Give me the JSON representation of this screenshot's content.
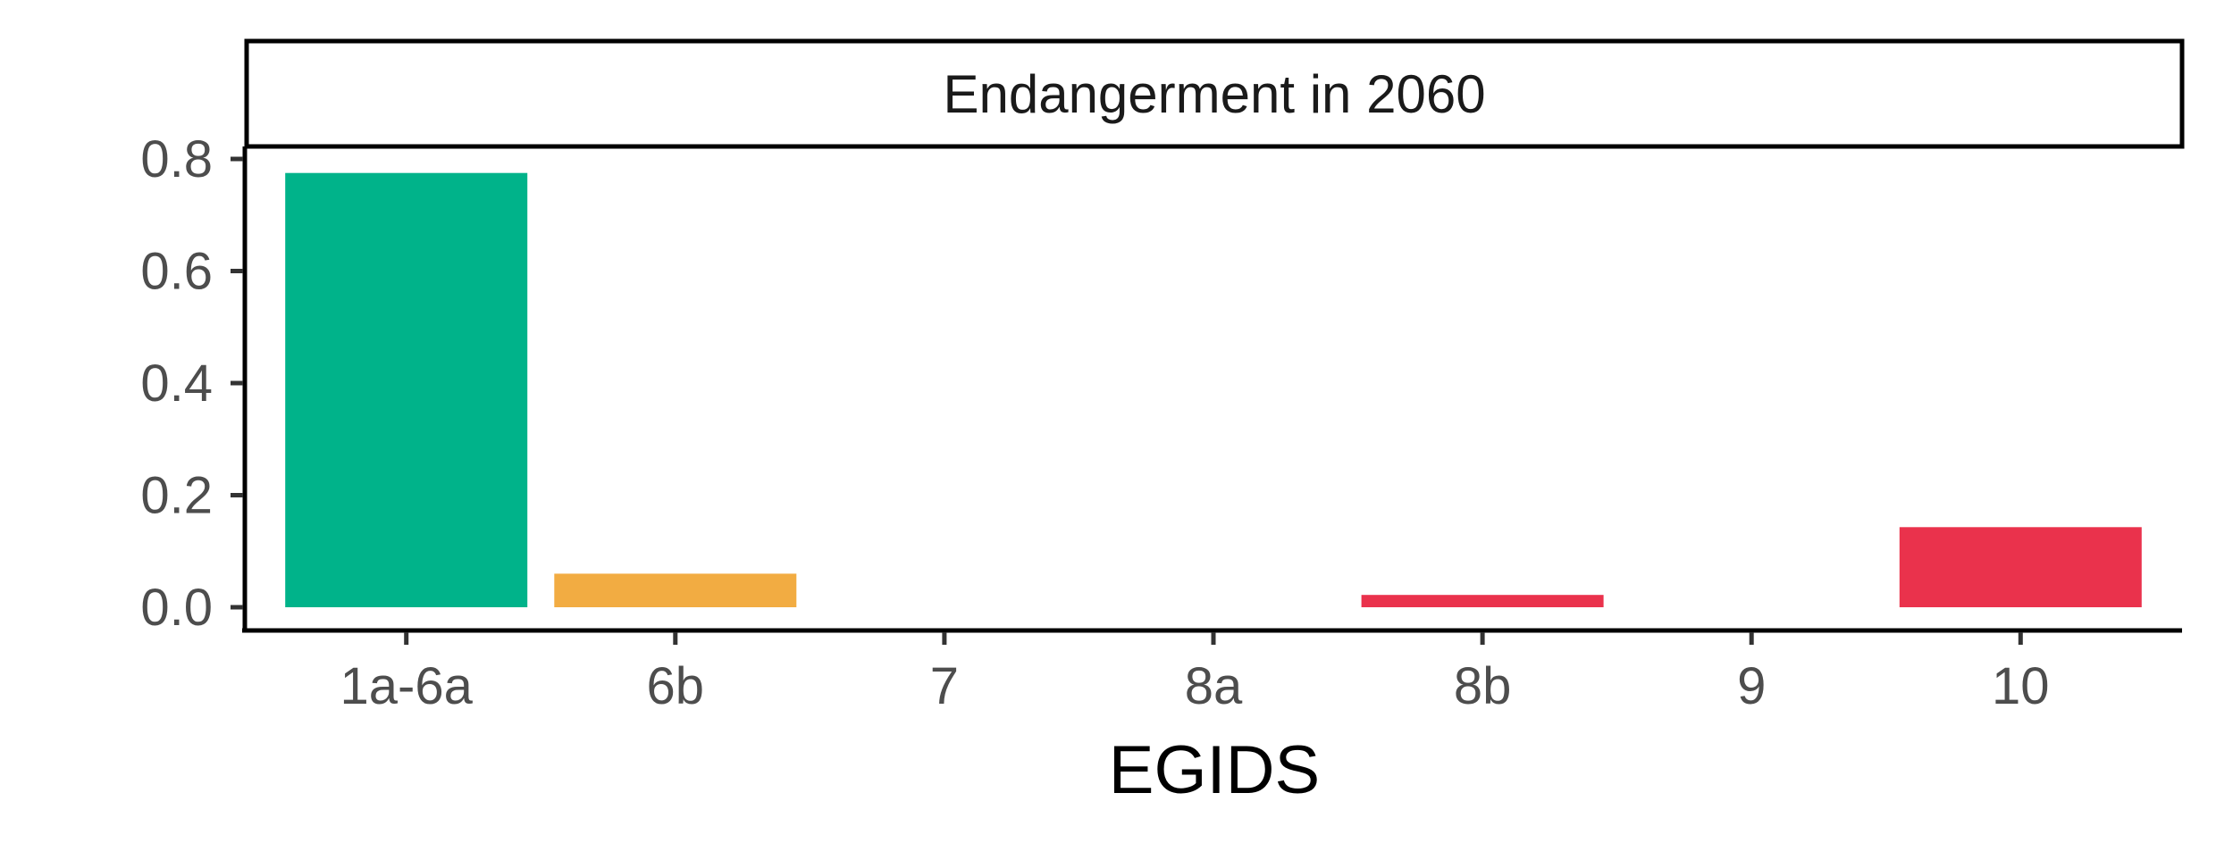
{
  "chart_data": {
    "type": "bar",
    "facet_title": "Endangerment in 2060",
    "xlabel": "EGIDS",
    "ylabel": "",
    "categories": [
      "1a-6a",
      "6b",
      "7",
      "8a",
      "8b",
      "9",
      "10"
    ],
    "values": [
      0.775,
      0.06,
      0,
      0,
      0.022,
      0,
      0.143
    ],
    "bar_colors": [
      "#00B38A",
      "#F2AC42",
      "#F2AC42",
      "#EA324C",
      "#EA324C",
      "#EA324C",
      "#EA324C"
    ],
    "yticks": [
      0.0,
      0.2,
      0.4,
      0.6,
      0.8
    ],
    "ytick_labels": [
      "0.0",
      "0.2",
      "0.4",
      "0.6",
      "0.8"
    ],
    "ylim": [
      0,
      0.8
    ],
    "grid": false,
    "legend": "none"
  }
}
